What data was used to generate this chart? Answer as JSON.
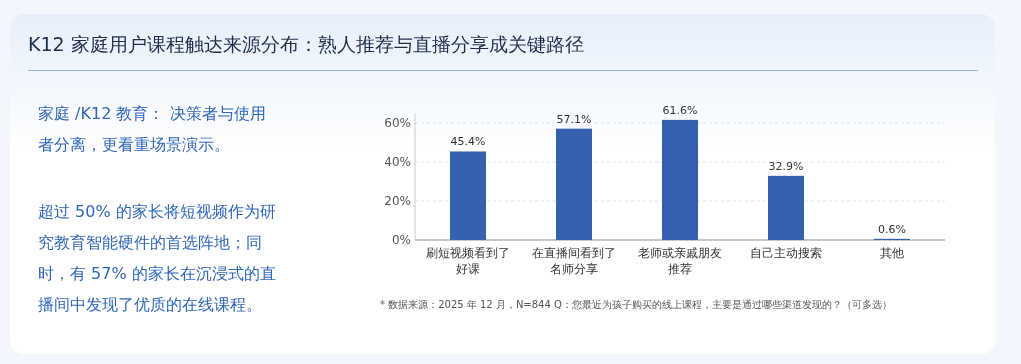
{
  "chart_data": {
    "type": "bar",
    "title": "K12 家庭用户课程触达来源分布：熟人推荐与直播分享成关键路径",
    "annotations": [
      "家庭 /K12 教育： 决策者与使用者分离，更看重场景演示。",
      "超过 50% 的家长将短视频作为研究教育智能硬件的首选阵地；同时，有 57% 的家长在沉浸式的直播间中发现了优质的在线课程。",
      "* 数据来源：2025 年 12 月，N=844 Q：您最近为孩子购买的线上课程，主要是通过哪些渠道发现的？（可多选）"
    ],
    "categories": [
      "刷短视频看到了好课",
      "在直播间看到了名师分享",
      "老师或亲戚朋友推荐",
      "自己主动搜索",
      "其他"
    ],
    "values": [
      45.4,
      57.1,
      61.6,
      32.9,
      0.6
    ],
    "value_labels": [
      "45.4%",
      "57.1%",
      "61.6%",
      "32.9%",
      "0.6%"
    ],
    "color": "#3560ad",
    "ylim": [
      0,
      65
    ],
    "yticks": [
      {
        "value": 0,
        "label": "0%"
      },
      {
        "value": 20,
        "label": "20%"
      },
      {
        "value": 40,
        "label": "40%"
      },
      {
        "value": 60,
        "label": "60%"
      }
    ],
    "grid": "y"
  }
}
